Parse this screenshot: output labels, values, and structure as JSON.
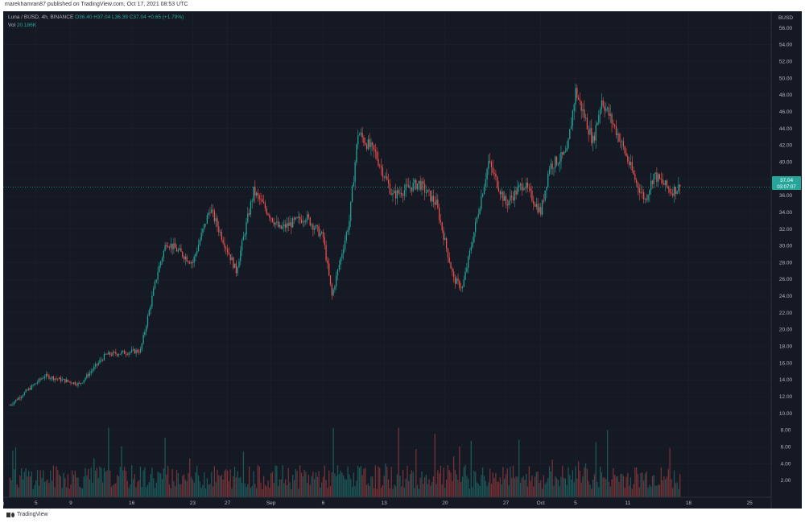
{
  "header": {
    "caption": "marekhamran87 published on TradingView.com, Oct 17, 2021 08:53 UTC"
  },
  "legend": {
    "symbol": "Luna / BUSD, 4h, BINANCE",
    "open": "O36.40",
    "high": "H37.04",
    "low": "L36.39",
    "close": "C37.04",
    "change": "+0.65 (+1.79%)",
    "volume_label": "Vol",
    "volume_value": "20.186K"
  },
  "price_badge": {
    "price": "37.04",
    "countdown": "03:07:07"
  },
  "footer": {
    "brand": "TradingView"
  },
  "colors": {
    "background": "#151924",
    "up": "#26a69a",
    "down": "#ef5350",
    "grid": "#1f2330",
    "axis_text": "#b2b5be"
  },
  "chart_data": {
    "type": "candlestick",
    "symbol": "Luna / BUSD",
    "interval": "4h",
    "exchange": "BINANCE",
    "currency": "BUSD",
    "x_tick_labels": [
      "ag",
      "5",
      "9",
      "16",
      "23",
      "27",
      "Sep",
      "6",
      "13",
      "20",
      "27",
      "Oct",
      "5",
      "11",
      "18",
      "25"
    ],
    "y_tick_labels": [
      "2.00",
      "4.00",
      "6.00",
      "8.00",
      "10.00",
      "12.00",
      "14.00",
      "16.00",
      "18.00",
      "20.00",
      "22.00",
      "24.00",
      "26.00",
      "28.00",
      "30.00",
      "32.00",
      "34.00",
      "36.00",
      "38.00",
      "40.00",
      "42.00",
      "44.00",
      "46.00",
      "48.00",
      "50.00",
      "52.00",
      "54.00",
      "56.00"
    ],
    "ylim": [
      0,
      58
    ],
    "volume_axis": "2.00M–10.00M (overlay, lower area)",
    "last_price": 37.04,
    "key_points": [
      {
        "x": "Aug 1",
        "close": 11.0
      },
      {
        "x": "Aug 5",
        "close": 14.5
      },
      {
        "x": "Aug 9",
        "close": 13.5
      },
      {
        "x": "Aug 12",
        "close": 17.0
      },
      {
        "x": "Aug 16",
        "close": 17.5
      },
      {
        "x": "Aug 18",
        "close": 27.0
      },
      {
        "x": "Aug 19",
        "close": 30.5
      },
      {
        "x": "Aug 22",
        "close": 28.0
      },
      {
        "x": "Aug 24",
        "close": 34.5
      },
      {
        "x": "Aug 27",
        "close": 27.0
      },
      {
        "x": "Aug 29",
        "close": 36.5
      },
      {
        "x": "Sep 1",
        "close": 32.0
      },
      {
        "x": "Sep 4",
        "close": 33.5
      },
      {
        "x": "Sep 6",
        "close": 31.0
      },
      {
        "x": "Sep 7",
        "close": 24.0
      },
      {
        "x": "Sep 9",
        "close": 33.0
      },
      {
        "x": "Sep 10",
        "close": 43.5
      },
      {
        "x": "Sep 12",
        "close": 41.0
      },
      {
        "x": "Sep 14",
        "close": 36.0
      },
      {
        "x": "Sep 17",
        "close": 37.5
      },
      {
        "x": "Sep 19",
        "close": 35.0
      },
      {
        "x": "Sep 21",
        "close": 26.0
      },
      {
        "x": "Sep 22",
        "close": 25.0
      },
      {
        "x": "Sep 24",
        "close": 35.0
      },
      {
        "x": "Sep 25",
        "close": 40.0
      },
      {
        "x": "Sep 27",
        "close": 35.0
      },
      {
        "x": "Sep 29",
        "close": 37.5
      },
      {
        "x": "Oct 1",
        "close": 34.0
      },
      {
        "x": "Oct 2",
        "close": 39.5
      },
      {
        "x": "Oct 4",
        "close": 41.0
      },
      {
        "x": "Oct 5",
        "close": 48.5
      },
      {
        "x": "Oct 7",
        "close": 42.5
      },
      {
        "x": "Oct 8",
        "close": 47.5
      },
      {
        "x": "Oct 10",
        "close": 43.0
      },
      {
        "x": "Oct 12",
        "close": 37.5
      },
      {
        "x": "Oct 13",
        "close": 35.5
      },
      {
        "x": "Oct 14",
        "close": 38.5
      },
      {
        "x": "Oct 16",
        "close": 36.5
      },
      {
        "x": "Oct 17",
        "close": 37.04
      }
    ]
  }
}
